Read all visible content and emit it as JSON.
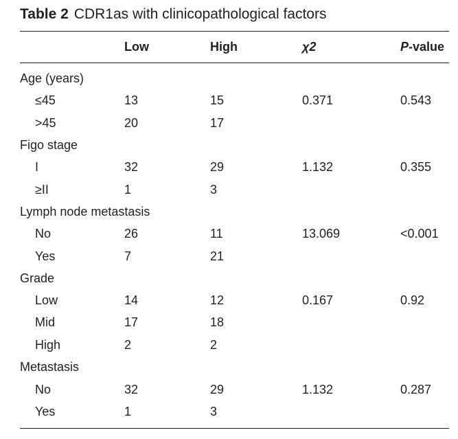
{
  "caption": {
    "label": "Table 2",
    "text": "CDR1as with clinicopathological factors"
  },
  "header": {
    "col1": "",
    "low": "Low",
    "high": "High",
    "chi": "χ2",
    "p_italic": "P",
    "p_rest": "-value"
  },
  "rows": [
    {
      "label": "Age (years)",
      "group": true
    },
    {
      "label": "≤45",
      "low": "13",
      "high": "15",
      "chi": "0.371",
      "p": "0.543"
    },
    {
      "label": ">45",
      "low": "20",
      "high": "17"
    },
    {
      "label": "Figo stage",
      "group": true
    },
    {
      "label": "I",
      "low": "32",
      "high": "29",
      "chi": "1.132",
      "p": "0.355"
    },
    {
      "label": "≥II",
      "low": "1",
      "high": "3"
    },
    {
      "label": "Lymph node metastasis",
      "group": true
    },
    {
      "label": "No",
      "low": "26",
      "high": "11",
      "chi": "13.069",
      "p": "<0.001"
    },
    {
      "label": "Yes",
      "low": "7",
      "high": "21"
    },
    {
      "label": "Grade",
      "group": true
    },
    {
      "label": "Low",
      "low": "14",
      "high": "12",
      "chi": "0.167",
      "p": "0.92"
    },
    {
      "label": "Mid",
      "low": "17",
      "high": "18"
    },
    {
      "label": "High",
      "low": "2",
      "high": "2"
    },
    {
      "label": "Metastasis",
      "group": true
    },
    {
      "label": "No",
      "low": "32",
      "high": "29",
      "chi": "1.132",
      "p": "0.287"
    },
    {
      "label": "Yes",
      "low": "1",
      "high": "3"
    }
  ]
}
